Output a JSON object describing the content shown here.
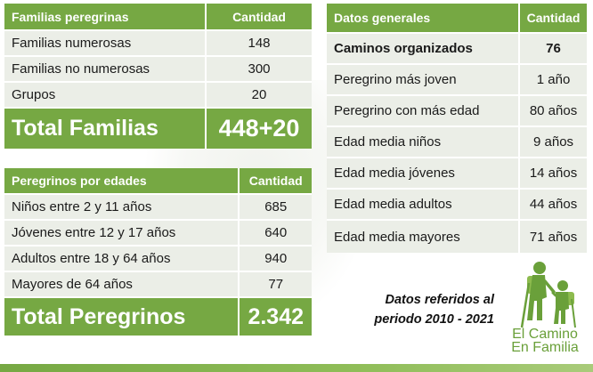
{
  "families": {
    "header": {
      "label": "Familias peregrinas",
      "value": "Cantidad"
    },
    "rows": [
      {
        "label": "Familias numerosas",
        "value": "148"
      },
      {
        "label": "Familias no numerosas",
        "value": "300"
      },
      {
        "label": "Grupos",
        "value": "20"
      }
    ],
    "total": {
      "label": "Total Familias",
      "value": "448+20"
    }
  },
  "pilgrims": {
    "header": {
      "label": "Peregrinos por edades",
      "value": "Cantidad"
    },
    "rows": [
      {
        "label": "Niños entre 2 y 11 años",
        "value": "685"
      },
      {
        "label": "Jóvenes entre 12 y 17 años",
        "value": "640"
      },
      {
        "label": "Adultos entre 18 y 64 años",
        "value": "940"
      },
      {
        "label": "Mayores de 64 años",
        "value": "77"
      }
    ],
    "total": {
      "label": "Total Peregrinos",
      "value": "2.342"
    }
  },
  "general": {
    "header": {
      "label": "Datos generales",
      "value": "Cantidad"
    },
    "rows": [
      {
        "label": "Caminos organizados",
        "value": "76"
      },
      {
        "label": "Peregrino más joven",
        "value": "1 año"
      },
      {
        "label": "Peregrino con más edad",
        "value": "80 años"
      },
      {
        "label": "Edad media niños",
        "value": "9 años"
      },
      {
        "label": "Edad media jóvenes",
        "value": "14 años"
      },
      {
        "label": "Edad media adultos",
        "value": "44 años"
      },
      {
        "label": "Edad media mayores",
        "value": "71 años"
      }
    ]
  },
  "note": {
    "line1": "Datos referidos al",
    "line2": "periodo 2010 - 2021"
  },
  "logo": {
    "line1": "El Camino",
    "line2": "En Familia"
  },
  "colors": {
    "accent": "#76a843",
    "row_bg": "#ebeee7",
    "logo_green": "#6aa03a"
  }
}
